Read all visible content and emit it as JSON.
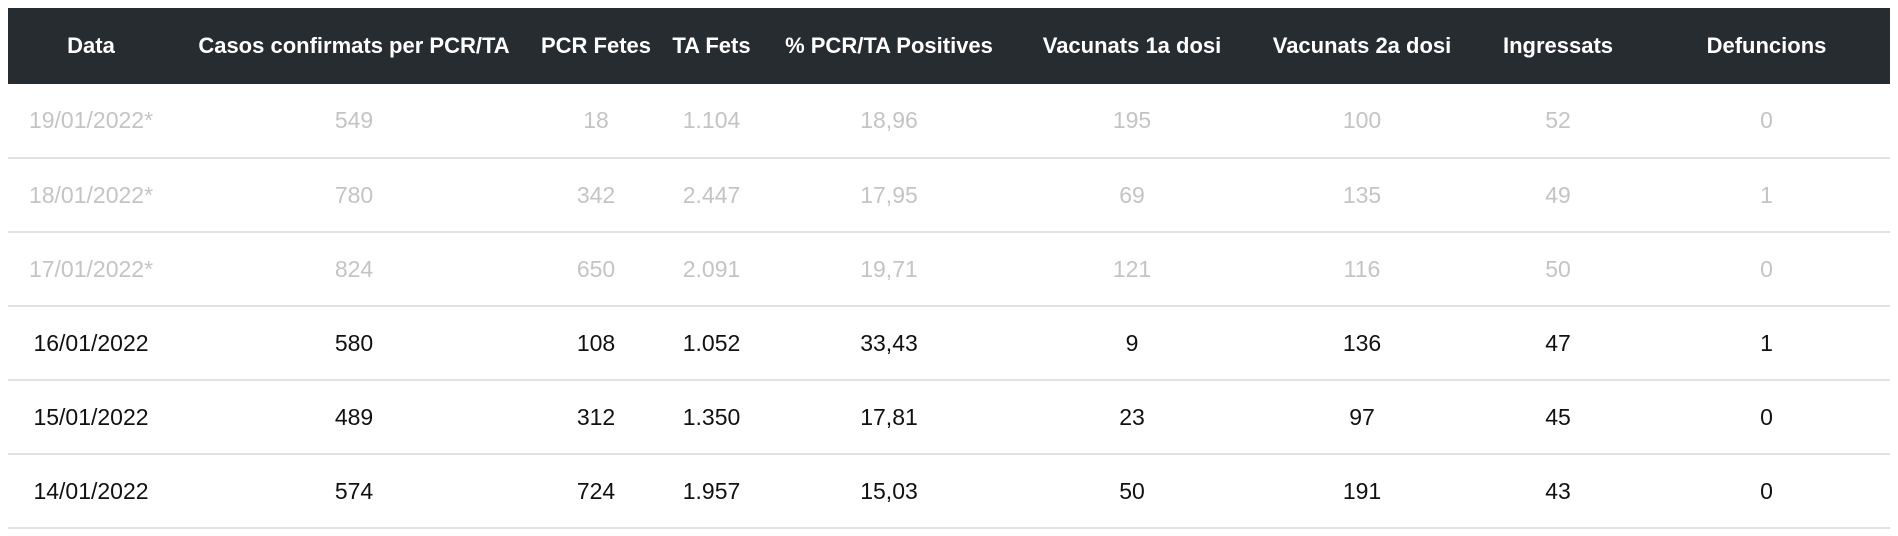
{
  "table": {
    "headers": [
      "Data",
      "Casos confirmats per PCR/TA",
      "PCR Fetes",
      "TA Fets",
      "% PCR/TA Positives",
      "Vacunats 1a dosi",
      "Vacunats 2a dosi",
      "Ingressats",
      "Defuncions"
    ],
    "rows": [
      {
        "provisional": true,
        "cells": [
          "19/01/2022*",
          "549",
          "18",
          "1.104",
          "18,96",
          "195",
          "100",
          "52",
          "0"
        ]
      },
      {
        "provisional": true,
        "cells": [
          "18/01/2022*",
          "780",
          "342",
          "2.447",
          "17,95",
          "69",
          "135",
          "49",
          "1"
        ]
      },
      {
        "provisional": true,
        "cells": [
          "17/01/2022*",
          "824",
          "650",
          "2.091",
          "19,71",
          "121",
          "116",
          "50",
          "0"
        ]
      },
      {
        "provisional": false,
        "cells": [
          "16/01/2022",
          "580",
          "108",
          "1.052",
          "33,43",
          "9",
          "136",
          "47",
          "1"
        ]
      },
      {
        "provisional": false,
        "cells": [
          "15/01/2022",
          "489",
          "312",
          "1.350",
          "17,81",
          "23",
          "97",
          "45",
          "0"
        ]
      },
      {
        "provisional": false,
        "cells": [
          "14/01/2022",
          "574",
          "724",
          "1.957",
          "15,03",
          "50",
          "191",
          "43",
          "0"
        ]
      }
    ]
  },
  "colors": {
    "header_bg": "#272c30",
    "header_text": "#ffffff",
    "row_text": "#111111",
    "provisional_text": "#c4c4c4",
    "row_border": "#dee2e6"
  }
}
